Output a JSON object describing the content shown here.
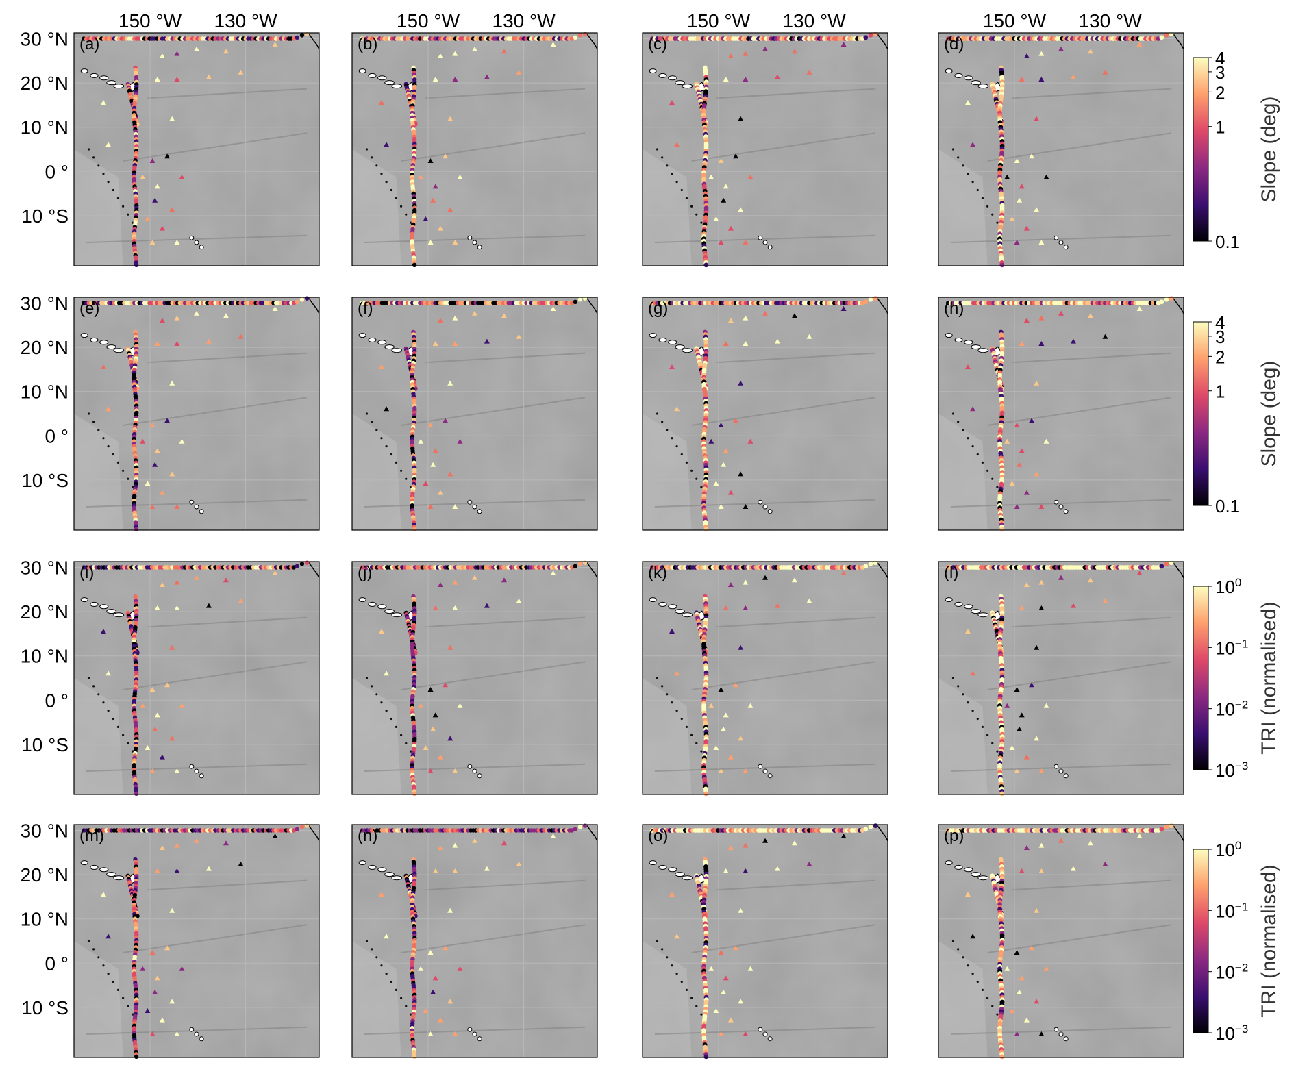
{
  "top_ticks": [
    "150 °W",
    "130 °W"
  ],
  "lat_ticks": [
    "30 °N",
    "20 °N",
    "10 °N",
    "0 °",
    "10 °S"
  ],
  "panels": [
    {
      "label": "(a)",
      "variant": "raw"
    },
    {
      "label": "(b)",
      "variant": "raw"
    },
    {
      "label": "(c)",
      "variant": "smooth"
    },
    {
      "label": "(d)",
      "variant": "smooth"
    },
    {
      "label": "(e)",
      "variant": "raw"
    },
    {
      "label": "(f)",
      "variant": "raw"
    },
    {
      "label": "(g)",
      "variant": "smooth"
    },
    {
      "label": "(h)",
      "variant": "smooth"
    },
    {
      "label": "(i)",
      "variant": "raw"
    },
    {
      "label": "(j)",
      "variant": "raw"
    },
    {
      "label": "(k)",
      "variant": "smooth"
    },
    {
      "label": "(l)",
      "variant": "smooth"
    },
    {
      "label": "(m)",
      "variant": "raw"
    },
    {
      "label": "(n)",
      "variant": "raw"
    },
    {
      "label": "(o)",
      "variant": "smooth"
    },
    {
      "label": "(p)",
      "variant": "smooth"
    }
  ],
  "colorbars": [
    {
      "title": "Slope (deg)",
      "scale": "log",
      "ticks": [
        {
          "label": "4",
          "value": 4
        },
        {
          "label": "3",
          "value": 3
        },
        {
          "label": "2",
          "value": 2
        },
        {
          "label": "1",
          "value": 1
        },
        {
          "label": "0.1",
          "value": 0.1
        }
      ]
    },
    {
      "title": "Slope (deg)",
      "scale": "log",
      "ticks": [
        {
          "label": "4",
          "value": 4
        },
        {
          "label": "3",
          "value": 3
        },
        {
          "label": "2",
          "value": 2
        },
        {
          "label": "1",
          "value": 1
        },
        {
          "label": "0.1",
          "value": 0.1
        }
      ]
    },
    {
      "title": "TRI (normalised)",
      "scale": "log",
      "ticks": [
        {
          "base": "10",
          "exp": "0",
          "value": 1
        },
        {
          "base": "10",
          "exp": "−1",
          "value": 0.1
        },
        {
          "base": "10",
          "exp": "−2",
          "value": 0.01
        },
        {
          "base": "10",
          "exp": "−3",
          "value": 0.001
        }
      ]
    },
    {
      "title": "TRI (normalised)",
      "scale": "log",
      "ticks": [
        {
          "base": "10",
          "exp": "0",
          "value": 1
        },
        {
          "base": "10",
          "exp": "−1",
          "value": 0.1
        },
        {
          "base": "10",
          "exp": "−2",
          "value": 0.01
        },
        {
          "base": "10",
          "exp": "−3",
          "value": 0.001
        }
      ]
    }
  ],
  "colors": {
    "ocean": "#9a9a9a",
    "grid": "#b8b8b8",
    "colormap": [
      "#000004",
      "#3b0f70",
      "#8c2981",
      "#de4968",
      "#fe9f6d",
      "#fcfdbf"
    ]
  },
  "markers": {
    "track": "circle",
    "stations": "triangle",
    "islands": "white-outline"
  }
}
